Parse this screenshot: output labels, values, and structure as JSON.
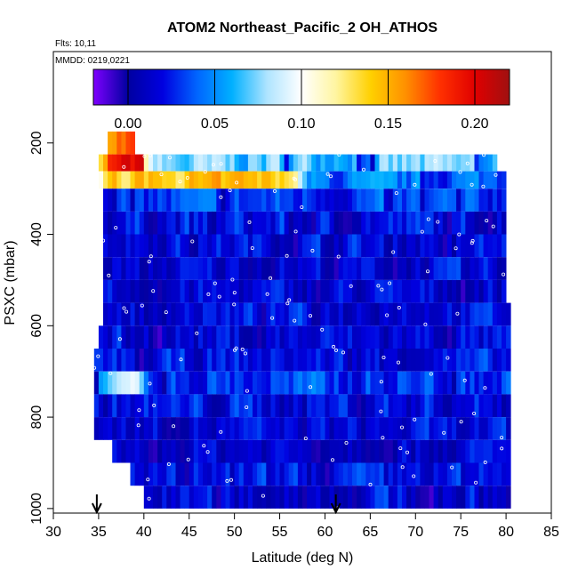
{
  "chart_data": {
    "type": "heatmap",
    "title": "ATOM2 Northeast_Pacific_2 OH_ATHOS",
    "flights_label": "Flts: 10,11",
    "dates_label": "MMDD: 0219,0221",
    "xlabel": "Latitude (deg N)",
    "ylabel": "PSXC (mbar)",
    "xlim": [
      30,
      85
    ],
    "ylim": [
      1010,
      0
    ],
    "x_ticks": [
      "30",
      "35",
      "40",
      "45",
      "50",
      "55",
      "60",
      "65",
      "70",
      "75",
      "80",
      "85"
    ],
    "y_ticks": [
      "200",
      "400",
      "600",
      "800",
      "1000"
    ],
    "colorbar": {
      "range": [
        -0.02,
        0.22
      ],
      "ticks": [
        "0.00",
        "0.05",
        "0.10",
        "0.15",
        "0.20"
      ],
      "tick_values": [
        0.0,
        0.05,
        0.1,
        0.15,
        0.2
      ],
      "palette": [
        "#7f00ff",
        "#0000a0",
        "#0000e0",
        "#0066ff",
        "#00b0ff",
        "#aee4ff",
        "#ffffff",
        "#fff5a0",
        "#ffd000",
        "#ff9000",
        "#ff3000",
        "#e00000",
        "#a01010"
      ]
    },
    "layers": [
      {
        "p": [
          175,
          225
        ],
        "lat": [
          36,
          39
        ],
        "base": 0.17,
        "var": 0.03
      },
      {
        "p": [
          225,
          262
        ],
        "lat": [
          35,
          79
        ],
        "base": 0.07,
        "var": 0.03,
        "hot": [
          35,
          40,
          0.19
        ]
      },
      {
        "p": [
          262,
          300
        ],
        "lat": [
          35,
          80
        ],
        "base": 0.04,
        "var": 0.03,
        "hot": [
          35,
          57,
          0.14
        ]
      },
      {
        "p": [
          300,
          350
        ],
        "lat": [
          35.5,
          80
        ],
        "base": 0.03,
        "var": 0.03
      },
      {
        "p": [
          350,
          400
        ],
        "lat": [
          35.5,
          80
        ],
        "base": 0.02,
        "var": 0.03
      },
      {
        "p": [
          400,
          450
        ],
        "lat": [
          35.5,
          80
        ],
        "base": 0.02,
        "var": 0.025
      },
      {
        "p": [
          450,
          500
        ],
        "lat": [
          35.5,
          80
        ],
        "base": 0.015,
        "var": 0.025
      },
      {
        "p": [
          500,
          550
        ],
        "lat": [
          35.5,
          80
        ],
        "base": 0.015,
        "var": 0.025
      },
      {
        "p": [
          550,
          600
        ],
        "lat": [
          35.5,
          80.5
        ],
        "base": 0.02,
        "var": 0.025
      },
      {
        "p": [
          600,
          650
        ],
        "lat": [
          35,
          80.5
        ],
        "base": 0.015,
        "var": 0.03
      },
      {
        "p": [
          650,
          700
        ],
        "lat": [
          34.5,
          80.5
        ],
        "base": 0.02,
        "var": 0.025
      },
      {
        "p": [
          700,
          750
        ],
        "lat": [
          34.5,
          80.5
        ],
        "base": 0.03,
        "var": 0.03,
        "hot": [
          35,
          40,
          0.08
        ]
      },
      {
        "p": [
          750,
          800
        ],
        "lat": [
          34.5,
          80.5
        ],
        "base": 0.02,
        "var": 0.03
      },
      {
        "p": [
          800,
          850
        ],
        "lat": [
          34.5,
          80.5
        ],
        "base": 0.015,
        "var": 0.025
      },
      {
        "p": [
          850,
          900
        ],
        "lat": [
          36.5,
          80.5
        ],
        "base": 0.015,
        "var": 0.025
      },
      {
        "p": [
          900,
          950
        ],
        "lat": [
          38.5,
          80.5
        ],
        "base": 0.02,
        "var": 0.025
      },
      {
        "p": [
          950,
          1000
        ],
        "lat": [
          40,
          80.5
        ],
        "base": 0.015,
        "var": 0.03
      }
    ],
    "arrows_lat": [
      34.8,
      61.2
    ]
  }
}
